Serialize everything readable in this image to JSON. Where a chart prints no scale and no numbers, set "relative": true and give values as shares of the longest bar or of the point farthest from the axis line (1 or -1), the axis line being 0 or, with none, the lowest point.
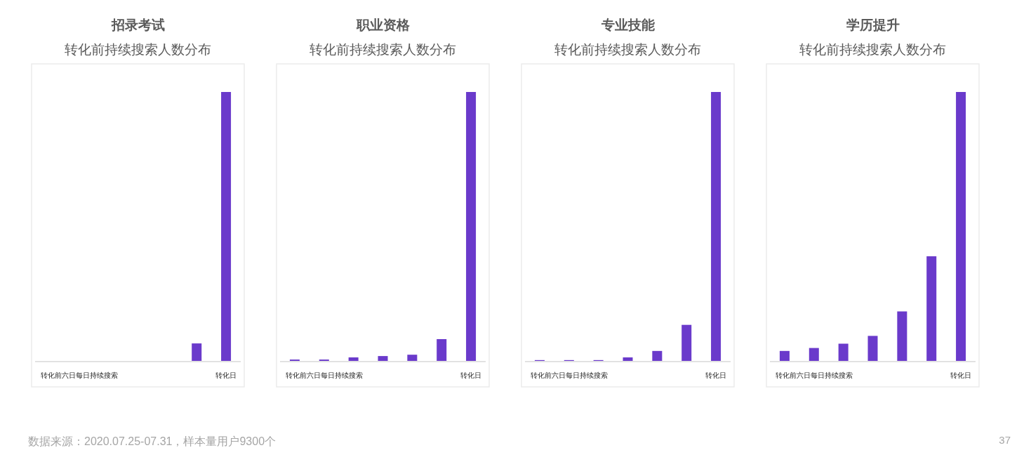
{
  "chart_data": [
    {
      "type": "bar",
      "title": "招录考试",
      "subtitle": "转化前持续搜索人数分布",
      "categories": [
        null,
        "转化前六日每日持续搜索",
        null,
        null,
        null,
        null,
        "转化日"
      ],
      "relative": true,
      "color": "#6a3acb",
      "values": [
        0,
        0,
        0,
        0,
        0,
        0.065,
        1
      ],
      "annotations": [
        "数据来源：2020.07.25-07.31，样本量用户9300个",
        "37"
      ]
    },
    {
      "type": "bar",
      "title": "职业资格",
      "subtitle": "转化前持续搜索人数分布",
      "categories": [
        null,
        "转化前六日每日持续搜索",
        null,
        null,
        null,
        null,
        "转化日"
      ],
      "relative": true,
      "color": "#6a3acb",
      "values": [
        0.005,
        0.005,
        0.013,
        0.018,
        0.023,
        0.081,
        1
      ]
    },
    {
      "type": "bar",
      "title": "专业技能",
      "subtitle": "转化前持续搜索人数分布",
      "categories": [
        null,
        "转化前六日每日持续搜索",
        null,
        null,
        null,
        null,
        "转化日"
      ],
      "relative": true,
      "color": "#6a3acb",
      "values": [
        0.003,
        0.003,
        0.003,
        0.013,
        0.037,
        0.134,
        1
      ]
    },
    {
      "type": "bar",
      "title": "学历提升",
      "subtitle": "转化前持续搜索人数分布",
      "categories": [
        null,
        "转化前六日每日持续搜索",
        null,
        null,
        null,
        null,
        "转化日"
      ],
      "relative": true,
      "color": "#6a3acb",
      "values": [
        0.037,
        0.048,
        0.064,
        0.093,
        0.184,
        0.389,
        1
      ]
    }
  ]
}
